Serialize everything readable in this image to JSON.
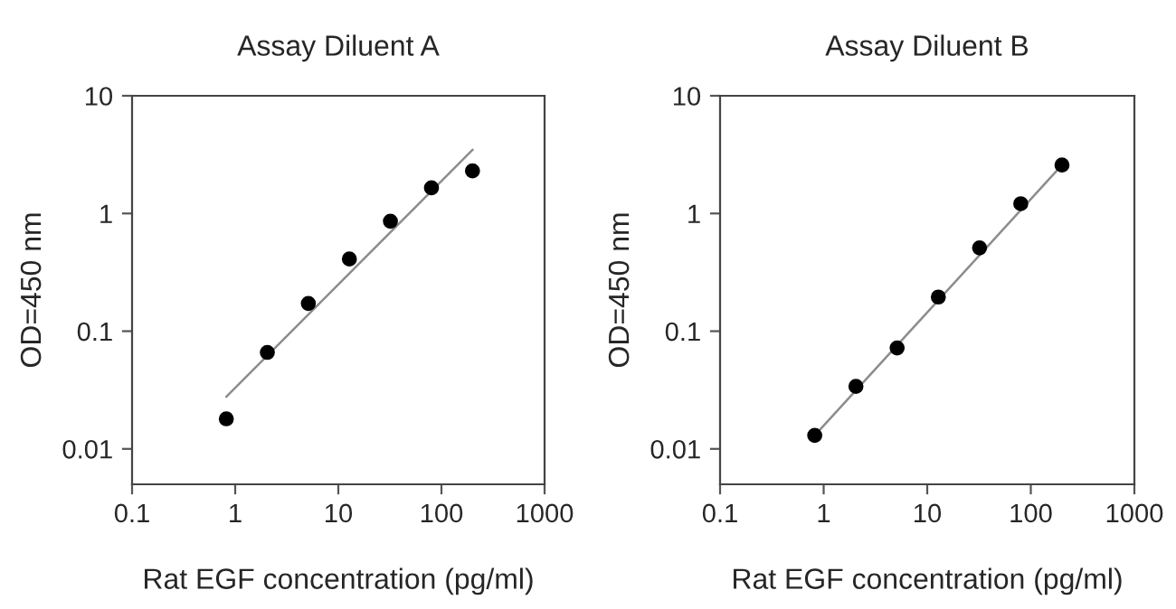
{
  "chart_data": [
    {
      "type": "scatter",
      "title": "Assay Diluent A",
      "xlabel": "Rat EGF concentration (pg/ml)",
      "ylabel": "OD=450 nm",
      "log": "xy",
      "grid": false,
      "legend": false,
      "marker": "circle",
      "xlim": [
        0.1,
        1000
      ],
      "ylim": [
        0.005,
        10
      ],
      "xticks": [
        0.1,
        1,
        10,
        100,
        1000
      ],
      "yticks": [
        0.01,
        0.1,
        1,
        10
      ],
      "series": [
        {
          "color": "#000000",
          "x": [
            0.82,
            2.05,
            5.12,
            12.8,
            32,
            80,
            200
          ],
          "values": [
            0.018,
            0.066,
            0.172,
            0.41,
            0.86,
            1.65,
            2.3
          ]
        },
        {
          "type": "line",
          "color": "#8c8c8c",
          "marker": "none",
          "x": [
            0.82,
            201
          ],
          "values": [
            0.0277,
            3.48
          ]
        }
      ]
    },
    {
      "type": "scatter",
      "title": "Assay Diluent B",
      "xlabel": "Rat EGF concentration (pg/ml)",
      "ylabel": "OD=450 nm",
      "log": "xy",
      "grid": false,
      "legend": false,
      "marker": "circle",
      "xlim": [
        0.1,
        1000
      ],
      "ylim": [
        0.005,
        10
      ],
      "xticks": [
        0.1,
        1,
        10,
        100,
        1000
      ],
      "yticks": [
        0.01,
        0.1,
        1,
        10
      ],
      "series": [
        {
          "color": "#000000",
          "x": [
            0.82,
            2.05,
            5.12,
            12.8,
            32,
            80,
            200
          ],
          "values": [
            0.013,
            0.034,
            0.072,
            0.195,
            0.51,
            1.21,
            2.58
          ]
        },
        {
          "type": "line",
          "color": "#8c8c8c",
          "marker": "none",
          "x": [
            0.82,
            200
          ],
          "values": [
            0.013,
            2.58
          ]
        }
      ]
    }
  ]
}
